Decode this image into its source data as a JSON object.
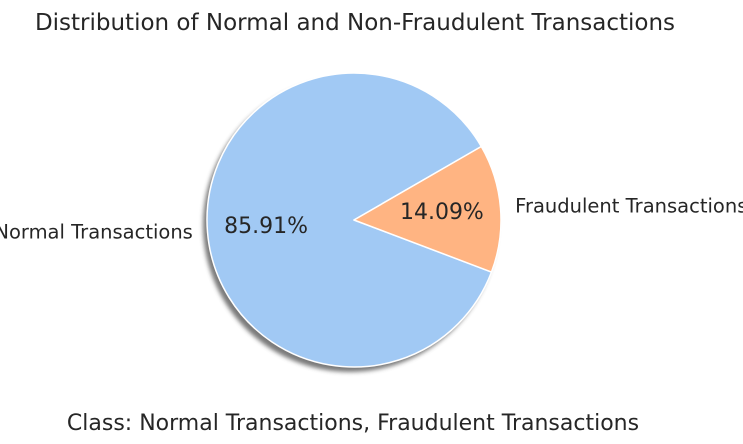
{
  "chart_data": {
    "type": "pie",
    "title": "Distribution of Normal and Non-Fraudulent Transactions",
    "xlabel": "Class: Normal Transactions, Fraudulent Transactions",
    "ylabel": "",
    "categories": [
      "Normal Transactions",
      "Fraudulent Transactions"
    ],
    "values": [
      85.91,
      14.09
    ],
    "value_labels": [
      "85.91%",
      "14.09%"
    ],
    "colors": [
      "#a1c9f4",
      "#ffb482"
    ],
    "start_angle_deg": 30,
    "shadow": true,
    "legend": "none",
    "grid": false
  }
}
